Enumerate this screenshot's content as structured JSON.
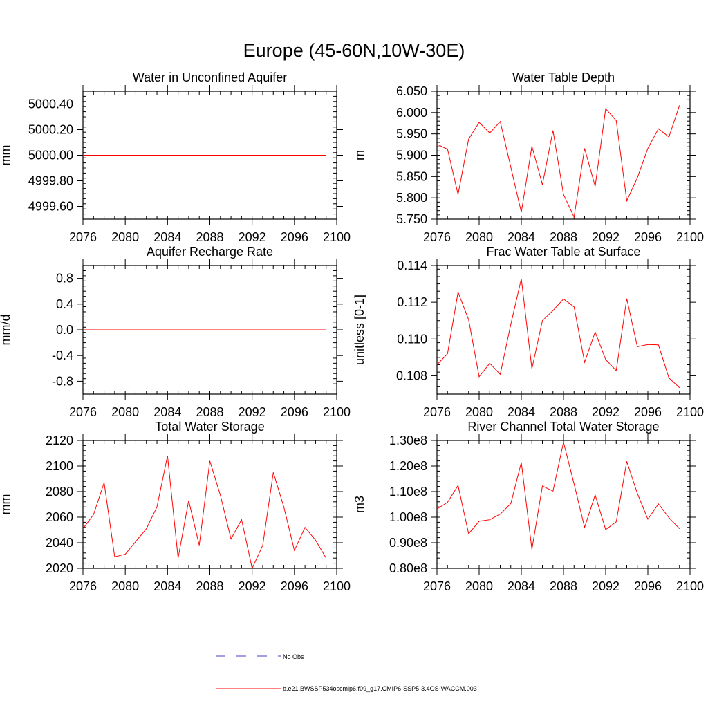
{
  "main_title": "Europe (45-60N,10W-30E)",
  "colors": {
    "series": "#ff0000",
    "obs": "#4040c0",
    "axis": "#000000"
  },
  "legend": {
    "obs_label": "No Obs",
    "model_label": "b.e21.BWSSP534oscmip6.f09_g17.CMIP6-SSP5-3.4OS-WACCM.003"
  },
  "chart_data": [
    {
      "type": "line",
      "title": "Water in Unconfined Aquifer",
      "ylabel": "mm",
      "xlim": [
        2076,
        2100
      ],
      "ylim": [
        4999.5,
        5000.5
      ],
      "xticks": [
        "2076",
        "2080",
        "2084",
        "2088",
        "2092",
        "2096",
        "2100"
      ],
      "yticks": [
        {
          "value": 4999.6,
          "label": "4999.60"
        },
        {
          "value": 4999.8,
          "label": "4999.80"
        },
        {
          "value": 5000.0,
          "label": "5000.00"
        },
        {
          "value": 5000.2,
          "label": "5000.20"
        },
        {
          "value": 5000.4,
          "label": "5000.40"
        }
      ],
      "x": [
        2076,
        2077,
        2078,
        2079,
        2080,
        2081,
        2082,
        2083,
        2084,
        2085,
        2086,
        2087,
        2088,
        2089,
        2090,
        2091,
        2092,
        2093,
        2094,
        2095,
        2096,
        2097,
        2098,
        2099
      ],
      "series": [
        {
          "name": "b.e21.BWSSP534oscmip6.f09_g17.CMIP6-SSP5-3.4OS-WACCM.003",
          "values": [
            5000,
            5000,
            5000,
            5000,
            5000,
            5000,
            5000,
            5000,
            5000,
            5000,
            5000,
            5000,
            5000,
            5000,
            5000,
            5000,
            5000,
            5000,
            5000,
            5000,
            5000,
            5000,
            5000,
            5000
          ]
        }
      ]
    },
    {
      "type": "line",
      "title": "Water Table Depth",
      "ylabel": "m",
      "xlim": [
        2076,
        2100
      ],
      "ylim": [
        5.75,
        6.05
      ],
      "xticks": [
        "2076",
        "2080",
        "2084",
        "2088",
        "2092",
        "2096",
        "2100"
      ],
      "yticks": [
        {
          "value": 5.75,
          "label": "5.750"
        },
        {
          "value": 5.8,
          "label": "5.800"
        },
        {
          "value": 5.85,
          "label": "5.850"
        },
        {
          "value": 5.9,
          "label": "5.900"
        },
        {
          "value": 5.95,
          "label": "5.950"
        },
        {
          "value": 6.0,
          "label": "6.000"
        },
        {
          "value": 6.05,
          "label": "6.050"
        }
      ],
      "x": [
        2076,
        2077,
        2078,
        2079,
        2080,
        2081,
        2082,
        2083,
        2084,
        2085,
        2086,
        2087,
        2088,
        2089,
        2090,
        2091,
        2092,
        2093,
        2094,
        2095,
        2096,
        2097,
        2098,
        2099
      ],
      "series": [
        {
          "name": "b.e21.BWSSP534oscmip6.f09_g17.CMIP6-SSP5-3.4OS-WACCM.003",
          "values": [
            5.926,
            5.914,
            5.808,
            5.938,
            5.977,
            5.952,
            5.979,
            5.872,
            5.766,
            5.921,
            5.831,
            5.958,
            5.808,
            5.755,
            5.916,
            5.827,
            6.009,
            5.981,
            5.793,
            5.847,
            5.916,
            5.962,
            5.943,
            6.017
          ]
        }
      ]
    },
    {
      "type": "line",
      "title": "Aquifer Recharge Rate",
      "ylabel": "mm/d",
      "xlim": [
        2076,
        2100
      ],
      "ylim": [
        -1.0,
        1.0
      ],
      "xticks": [
        "2076",
        "2080",
        "2084",
        "2088",
        "2092",
        "2096",
        "2100"
      ],
      "yticks": [
        {
          "value": -0.8,
          "label": "-0.8"
        },
        {
          "value": -0.4,
          "label": "-0.4"
        },
        {
          "value": 0.0,
          "label": "0.0"
        },
        {
          "value": 0.4,
          "label": "0.4"
        },
        {
          "value": 0.8,
          "label": "0.8"
        }
      ],
      "x": [
        2076,
        2077,
        2078,
        2079,
        2080,
        2081,
        2082,
        2083,
        2084,
        2085,
        2086,
        2087,
        2088,
        2089,
        2090,
        2091,
        2092,
        2093,
        2094,
        2095,
        2096,
        2097,
        2098,
        2099
      ],
      "series": [
        {
          "name": "b.e21.BWSSP534oscmip6.f09_g17.CMIP6-SSP5-3.4OS-WACCM.003",
          "values": [
            0,
            0,
            0,
            0,
            0,
            0,
            0,
            0,
            0,
            0,
            0,
            0,
            0,
            0,
            0,
            0,
            0,
            0,
            0,
            0,
            0,
            0,
            0,
            0
          ]
        }
      ]
    },
    {
      "type": "line",
      "title": "Frac Water Table at Surface",
      "ylabel": "unitless [0-1]",
      "xlim": [
        2076,
        2100
      ],
      "ylim": [
        0.107,
        0.114
      ],
      "xticks": [
        "2076",
        "2080",
        "2084",
        "2088",
        "2092",
        "2096",
        "2100"
      ],
      "yticks": [
        {
          "value": 0.108,
          "label": "0.108"
        },
        {
          "value": 0.11,
          "label": "0.110"
        },
        {
          "value": 0.112,
          "label": "0.112"
        },
        {
          "value": 0.114,
          "label": "0.114"
        }
      ],
      "x": [
        2076,
        2077,
        2078,
        2079,
        2080,
        2081,
        2082,
        2083,
        2084,
        2085,
        2086,
        2087,
        2088,
        2089,
        2090,
        2091,
        2092,
        2093,
        2094,
        2095,
        2096,
        2097,
        2098,
        2099
      ],
      "series": [
        {
          "name": "b.e21.BWSSP534oscmip6.f09_g17.CMIP6-SSP5-3.4OS-WACCM.003",
          "values": [
            0.1086,
            0.1092,
            0.11255,
            0.11105,
            0.10795,
            0.10868,
            0.10808,
            0.1108,
            0.11328,
            0.10838,
            0.111,
            0.11155,
            0.11218,
            0.11175,
            0.10873,
            0.11038,
            0.10888,
            0.10828,
            0.1122,
            0.10958,
            0.1097,
            0.10968,
            0.10788,
            0.10735
          ]
        }
      ]
    },
    {
      "type": "line",
      "title": "Total Water Storage",
      "ylabel": "mm",
      "xlim": [
        2076,
        2100
      ],
      "ylim": [
        2020,
        2120
      ],
      "xticks": [
        "2076",
        "2080",
        "2084",
        "2088",
        "2092",
        "2096",
        "2100"
      ],
      "yticks": [
        {
          "value": 2020,
          "label": "2020"
        },
        {
          "value": 2040,
          "label": "2040"
        },
        {
          "value": 2060,
          "label": "2060"
        },
        {
          "value": 2080,
          "label": "2080"
        },
        {
          "value": 2100,
          "label": "2100"
        },
        {
          "value": 2120,
          "label": "2120"
        }
      ],
      "x": [
        2076,
        2077,
        2078,
        2079,
        2080,
        2081,
        2082,
        2083,
        2084,
        2085,
        2086,
        2087,
        2088,
        2089,
        2090,
        2091,
        2092,
        2093,
        2094,
        2095,
        2096,
        2097,
        2098,
        2099
      ],
      "series": [
        {
          "name": "b.e21.BWSSP534oscmip6.f09_g17.CMIP6-SSP5-3.4OS-WACCM.003",
          "values": [
            2051,
            2062,
            2087,
            2029,
            2031,
            2041,
            2051,
            2068,
            2108,
            2028,
            2073,
            2038,
            2104,
            2077,
            2043,
            2058,
            2020,
            2038,
            2095,
            2068,
            2034,
            2052,
            2042,
            2028
          ]
        }
      ]
    },
    {
      "type": "line",
      "title": "River Channel Total Water Storage",
      "ylabel": "m3",
      "xlim": [
        2076,
        2100
      ],
      "ylim": [
        0.8,
        1.3
      ],
      "xticks": [
        "2076",
        "2080",
        "2084",
        "2088",
        "2092",
        "2096",
        "2100"
      ],
      "yticks": [
        {
          "value": 0.8,
          "label": "0.80e8"
        },
        {
          "value": 0.9,
          "label": "0.90e8"
        },
        {
          "value": 1.0,
          "label": "1.00e8"
        },
        {
          "value": 1.1,
          "label": "1.10e8"
        },
        {
          "value": 1.2,
          "label": "1.20e8"
        },
        {
          "value": 1.3,
          "label": "1.30e8"
        }
      ],
      "x": [
        2076,
        2077,
        2078,
        2079,
        2080,
        2081,
        2082,
        2083,
        2084,
        2085,
        2086,
        2087,
        2088,
        2089,
        2090,
        2091,
        2092,
        2093,
        2094,
        2095,
        2096,
        2097,
        2098,
        2099
      ],
      "series": [
        {
          "name": "b.e21.BWSSP534oscmip6.f09_g17.CMIP6-SSP5-3.4OS-WACCM.003",
          "values": [
            1.032,
            1.058,
            1.124,
            0.935,
            0.984,
            0.99,
            1.012,
            1.053,
            1.214,
            0.874,
            1.122,
            1.102,
            1.293,
            1.13,
            0.96,
            1.087,
            0.951,
            0.982,
            1.218,
            1.093,
            0.992,
            1.052,
            0.998,
            0.955
          ]
        }
      ]
    }
  ]
}
